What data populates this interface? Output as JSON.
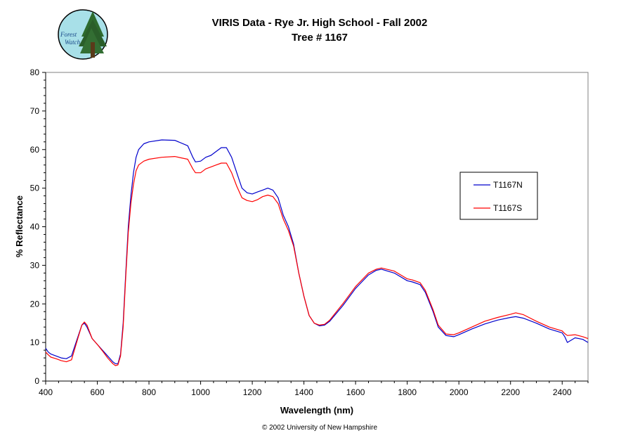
{
  "logo": {
    "line1": "Forest",
    "line2": "Watch"
  },
  "footer": {
    "text": "© 2002 University of New Hampshire"
  },
  "chart_data": {
    "type": "line",
    "title": "VIRIS Data - Rye Jr. High School - Fall 2002",
    "subtitle": "Tree # 1167",
    "xlabel": "Wavelength (nm)",
    "ylabel": "% Reflectance",
    "xlim": [
      400,
      2500
    ],
    "ylim": [
      0,
      80
    ],
    "xticks": [
      400,
      600,
      800,
      1000,
      1200,
      1400,
      1600,
      1800,
      2000,
      2200,
      2400
    ],
    "yticks": [
      0,
      10,
      20,
      30,
      40,
      50,
      60,
      70,
      80
    ],
    "grid": false,
    "legend_position": "right",
    "series": [
      {
        "name": "T1167N",
        "color": "#0000cc",
        "x": [
          400,
          410,
          420,
          440,
          460,
          480,
          500,
          520,
          540,
          550,
          560,
          580,
          600,
          620,
          640,
          660,
          670,
          680,
          690,
          700,
          710,
          720,
          730,
          740,
          750,
          760,
          780,
          800,
          850,
          900,
          950,
          970,
          980,
          1000,
          1020,
          1040,
          1060,
          1080,
          1100,
          1120,
          1140,
          1160,
          1180,
          1200,
          1220,
          1240,
          1260,
          1280,
          1300,
          1320,
          1340,
          1360,
          1380,
          1400,
          1420,
          1440,
          1460,
          1480,
          1500,
          1550,
          1600,
          1650,
          1680,
          1700,
          1750,
          1800,
          1820,
          1850,
          1870,
          1900,
          1920,
          1950,
          1980,
          2000,
          2050,
          2100,
          2150,
          2200,
          2220,
          2250,
          2300,
          2350,
          2400,
          2410,
          2420,
          2450,
          2480,
          2500
        ],
        "y": [
          8.5,
          7.5,
          7.0,
          6.5,
          6.0,
          5.8,
          6.5,
          10.5,
          14.5,
          15.0,
          14.0,
          11.0,
          9.5,
          8.0,
          6.5,
          5.0,
          4.5,
          4.5,
          7.0,
          15.0,
          28.0,
          40.0,
          48.0,
          54.0,
          58.0,
          60.0,
          61.5,
          62.0,
          62.5,
          62.4,
          61.0,
          58.0,
          56.8,
          57.0,
          58.0,
          58.5,
          59.5,
          60.5,
          60.5,
          58.0,
          54.0,
          50.0,
          48.8,
          48.5,
          49.0,
          49.5,
          50.0,
          49.5,
          47.5,
          43.0,
          40.0,
          35.5,
          28.0,
          22.0,
          17.0,
          15.0,
          14.3,
          14.5,
          15.5,
          19.5,
          24.0,
          27.5,
          28.7,
          29.0,
          28.0,
          26.0,
          25.7,
          25.0,
          23.0,
          18.0,
          14.0,
          11.8,
          11.5,
          12.0,
          13.5,
          14.8,
          15.8,
          16.5,
          16.7,
          16.3,
          15.0,
          13.5,
          12.5,
          11.5,
          10.0,
          11.2,
          10.8,
          10.0
        ]
      },
      {
        "name": "T1167S",
        "color": "#ff0000",
        "x": [
          400,
          410,
          420,
          440,
          460,
          480,
          500,
          520,
          540,
          550,
          560,
          580,
          600,
          620,
          640,
          660,
          670,
          680,
          690,
          700,
          710,
          720,
          730,
          740,
          750,
          760,
          780,
          800,
          850,
          900,
          950,
          970,
          980,
          1000,
          1020,
          1040,
          1060,
          1080,
          1100,
          1120,
          1140,
          1160,
          1180,
          1200,
          1220,
          1240,
          1260,
          1280,
          1300,
          1320,
          1340,
          1360,
          1380,
          1400,
          1420,
          1440,
          1460,
          1480,
          1500,
          1550,
          1600,
          1650,
          1680,
          1700,
          1750,
          1800,
          1820,
          1850,
          1870,
          1900,
          1920,
          1950,
          1980,
          2000,
          2050,
          2100,
          2150,
          2200,
          2220,
          2250,
          2300,
          2350,
          2400,
          2410,
          2420,
          2450,
          2480,
          2500
        ],
        "y": [
          7.5,
          6.8,
          6.2,
          5.8,
          5.3,
          5.0,
          5.5,
          10.0,
          14.5,
          15.3,
          14.5,
          11.0,
          9.5,
          7.8,
          6.0,
          4.5,
          4.0,
          4.2,
          6.5,
          14.0,
          27.0,
          38.5,
          46.0,
          51.0,
          54.5,
          56.0,
          57.0,
          57.5,
          58.0,
          58.2,
          57.5,
          55.0,
          54.0,
          54.0,
          55.0,
          55.5,
          56.0,
          56.5,
          56.5,
          54.0,
          50.5,
          47.5,
          46.8,
          46.5,
          47.0,
          47.8,
          48.2,
          47.8,
          46.0,
          42.0,
          39.0,
          35.0,
          28.0,
          22.0,
          17.0,
          15.0,
          14.5,
          14.7,
          15.8,
          20.0,
          24.5,
          28.0,
          29.0,
          29.3,
          28.5,
          26.5,
          26.2,
          25.5,
          23.5,
          18.5,
          14.5,
          12.2,
          12.0,
          12.5,
          14.0,
          15.5,
          16.5,
          17.3,
          17.7,
          17.2,
          15.5,
          14.0,
          13.0,
          12.3,
          11.8,
          12.0,
          11.5,
          11.0
        ]
      }
    ]
  }
}
